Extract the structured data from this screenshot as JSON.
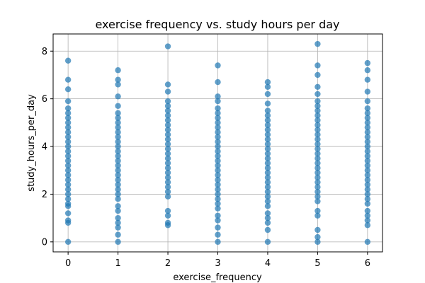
{
  "chart_data": {
    "type": "scatter",
    "title": "exercise frequency vs. study hours per day",
    "xlabel": "exercise_frequency",
    "ylabel": "study_hours_per_day",
    "xlim": [
      -0.3,
      6.3
    ],
    "ylim": [
      -0.42,
      8.72
    ],
    "xticks": [
      0,
      1,
      2,
      3,
      4,
      5,
      6
    ],
    "yticks": [
      0,
      2,
      4,
      6,
      8
    ],
    "grid": true,
    "marker_color": "#1f77b4",
    "marker_alpha": 0.7,
    "series": [
      {
        "points": [
          [
            0,
            0.0
          ],
          [
            0,
            0.8
          ],
          [
            0,
            0.9
          ],
          [
            0,
            1.2
          ],
          [
            0,
            1.5
          ],
          [
            0,
            1.6
          ],
          [
            0,
            1.8
          ],
          [
            0,
            2.0
          ],
          [
            0,
            2.2
          ],
          [
            0,
            2.4
          ],
          [
            0,
            2.6
          ],
          [
            0,
            2.8
          ],
          [
            0,
            3.0
          ],
          [
            0,
            3.2
          ],
          [
            0,
            3.4
          ],
          [
            0,
            3.6
          ],
          [
            0,
            3.8
          ],
          [
            0,
            4.0
          ],
          [
            0,
            4.2
          ],
          [
            0,
            4.4
          ],
          [
            0,
            4.6
          ],
          [
            0,
            4.8
          ],
          [
            0,
            5.0
          ],
          [
            0,
            5.2
          ],
          [
            0,
            5.4
          ],
          [
            0,
            5.6
          ],
          [
            0,
            5.9
          ],
          [
            0,
            6.4
          ],
          [
            0,
            6.8
          ],
          [
            0,
            7.6
          ],
          [
            1,
            0.0
          ],
          [
            1,
            0.3
          ],
          [
            1,
            0.6
          ],
          [
            1,
            0.8
          ],
          [
            1,
            1.0
          ],
          [
            1,
            1.3
          ],
          [
            1,
            1.5
          ],
          [
            1,
            1.8
          ],
          [
            1,
            2.0
          ],
          [
            1,
            2.2
          ],
          [
            1,
            2.4
          ],
          [
            1,
            2.6
          ],
          [
            1,
            2.8
          ],
          [
            1,
            3.0
          ],
          [
            1,
            3.2
          ],
          [
            1,
            3.4
          ],
          [
            1,
            3.6
          ],
          [
            1,
            3.8
          ],
          [
            1,
            4.0
          ],
          [
            1,
            4.2
          ],
          [
            1,
            4.4
          ],
          [
            1,
            4.6
          ],
          [
            1,
            4.8
          ],
          [
            1,
            5.0
          ],
          [
            1,
            5.2
          ],
          [
            1,
            5.4
          ],
          [
            1,
            5.7
          ],
          [
            1,
            6.1
          ],
          [
            1,
            6.6
          ],
          [
            1,
            6.8
          ],
          [
            1,
            7.2
          ],
          [
            2,
            0.7
          ],
          [
            2,
            0.8
          ],
          [
            2,
            1.1
          ],
          [
            2,
            1.3
          ],
          [
            2,
            1.9
          ],
          [
            2,
            2.1
          ],
          [
            2,
            2.3
          ],
          [
            2,
            2.5
          ],
          [
            2,
            2.7
          ],
          [
            2,
            2.9
          ],
          [
            2,
            3.1
          ],
          [
            2,
            3.3
          ],
          [
            2,
            3.5
          ],
          [
            2,
            3.7
          ],
          [
            2,
            3.9
          ],
          [
            2,
            4.1
          ],
          [
            2,
            4.3
          ],
          [
            2,
            4.5
          ],
          [
            2,
            4.7
          ],
          [
            2,
            4.9
          ],
          [
            2,
            5.1
          ],
          [
            2,
            5.3
          ],
          [
            2,
            5.5
          ],
          [
            2,
            5.7
          ],
          [
            2,
            5.9
          ],
          [
            2,
            6.3
          ],
          [
            2,
            6.6
          ],
          [
            2,
            8.2
          ],
          [
            3,
            0.0
          ],
          [
            3,
            0.3
          ],
          [
            3,
            0.6
          ],
          [
            3,
            0.9
          ],
          [
            3,
            1.1
          ],
          [
            3,
            1.4
          ],
          [
            3,
            1.6
          ],
          [
            3,
            1.8
          ],
          [
            3,
            2.0
          ],
          [
            3,
            2.2
          ],
          [
            3,
            2.4
          ],
          [
            3,
            2.6
          ],
          [
            3,
            2.8
          ],
          [
            3,
            3.0
          ],
          [
            3,
            3.2
          ],
          [
            3,
            3.4
          ],
          [
            3,
            3.6
          ],
          [
            3,
            3.8
          ],
          [
            3,
            4.0
          ],
          [
            3,
            4.2
          ],
          [
            3,
            4.4
          ],
          [
            3,
            4.6
          ],
          [
            3,
            4.8
          ],
          [
            3,
            5.0
          ],
          [
            3,
            5.2
          ],
          [
            3,
            5.4
          ],
          [
            3,
            5.6
          ],
          [
            3,
            5.9
          ],
          [
            3,
            6.1
          ],
          [
            3,
            6.7
          ],
          [
            3,
            7.4
          ],
          [
            4,
            0.0
          ],
          [
            4,
            0.5
          ],
          [
            4,
            0.8
          ],
          [
            4,
            1.0
          ],
          [
            4,
            1.2
          ],
          [
            4,
            1.5
          ],
          [
            4,
            1.7
          ],
          [
            4,
            1.9
          ],
          [
            4,
            2.1
          ],
          [
            4,
            2.3
          ],
          [
            4,
            2.5
          ],
          [
            4,
            2.7
          ],
          [
            4,
            2.9
          ],
          [
            4,
            3.1
          ],
          [
            4,
            3.3
          ],
          [
            4,
            3.5
          ],
          [
            4,
            3.7
          ],
          [
            4,
            3.9
          ],
          [
            4,
            4.1
          ],
          [
            4,
            4.3
          ],
          [
            4,
            4.5
          ],
          [
            4,
            4.7
          ],
          [
            4,
            4.9
          ],
          [
            4,
            5.1
          ],
          [
            4,
            5.3
          ],
          [
            4,
            5.5
          ],
          [
            4,
            5.8
          ],
          [
            4,
            6.2
          ],
          [
            4,
            6.5
          ],
          [
            4,
            6.7
          ],
          [
            5,
            0.0
          ],
          [
            5,
            0.2
          ],
          [
            5,
            0.5
          ],
          [
            5,
            1.1
          ],
          [
            5,
            1.3
          ],
          [
            5,
            1.7
          ],
          [
            5,
            1.9
          ],
          [
            5,
            2.1
          ],
          [
            5,
            2.3
          ],
          [
            5,
            2.5
          ],
          [
            5,
            2.7
          ],
          [
            5,
            2.9
          ],
          [
            5,
            3.1
          ],
          [
            5,
            3.3
          ],
          [
            5,
            3.5
          ],
          [
            5,
            3.7
          ],
          [
            5,
            3.9
          ],
          [
            5,
            4.1
          ],
          [
            5,
            4.3
          ],
          [
            5,
            4.5
          ],
          [
            5,
            4.7
          ],
          [
            5,
            4.9
          ],
          [
            5,
            5.1
          ],
          [
            5,
            5.3
          ],
          [
            5,
            5.5
          ],
          [
            5,
            5.7
          ],
          [
            5,
            5.9
          ],
          [
            5,
            6.2
          ],
          [
            5,
            6.5
          ],
          [
            5,
            7.0
          ],
          [
            5,
            7.4
          ],
          [
            5,
            8.3
          ],
          [
            6,
            0.0
          ],
          [
            6,
            0.7
          ],
          [
            6,
            0.9
          ],
          [
            6,
            1.1
          ],
          [
            6,
            1.3
          ],
          [
            6,
            1.6
          ],
          [
            6,
            1.8
          ],
          [
            6,
            2.0
          ],
          [
            6,
            2.2
          ],
          [
            6,
            2.4
          ],
          [
            6,
            2.6
          ],
          [
            6,
            2.8
          ],
          [
            6,
            3.0
          ],
          [
            6,
            3.2
          ],
          [
            6,
            3.4
          ],
          [
            6,
            3.6
          ],
          [
            6,
            3.8
          ],
          [
            6,
            4.0
          ],
          [
            6,
            4.2
          ],
          [
            6,
            4.4
          ],
          [
            6,
            4.6
          ],
          [
            6,
            4.8
          ],
          [
            6,
            5.0
          ],
          [
            6,
            5.2
          ],
          [
            6,
            5.4
          ],
          [
            6,
            5.6
          ],
          [
            6,
            5.9
          ],
          [
            6,
            6.3
          ],
          [
            6,
            6.8
          ],
          [
            6,
            7.2
          ],
          [
            6,
            7.5
          ]
        ]
      }
    ]
  }
}
